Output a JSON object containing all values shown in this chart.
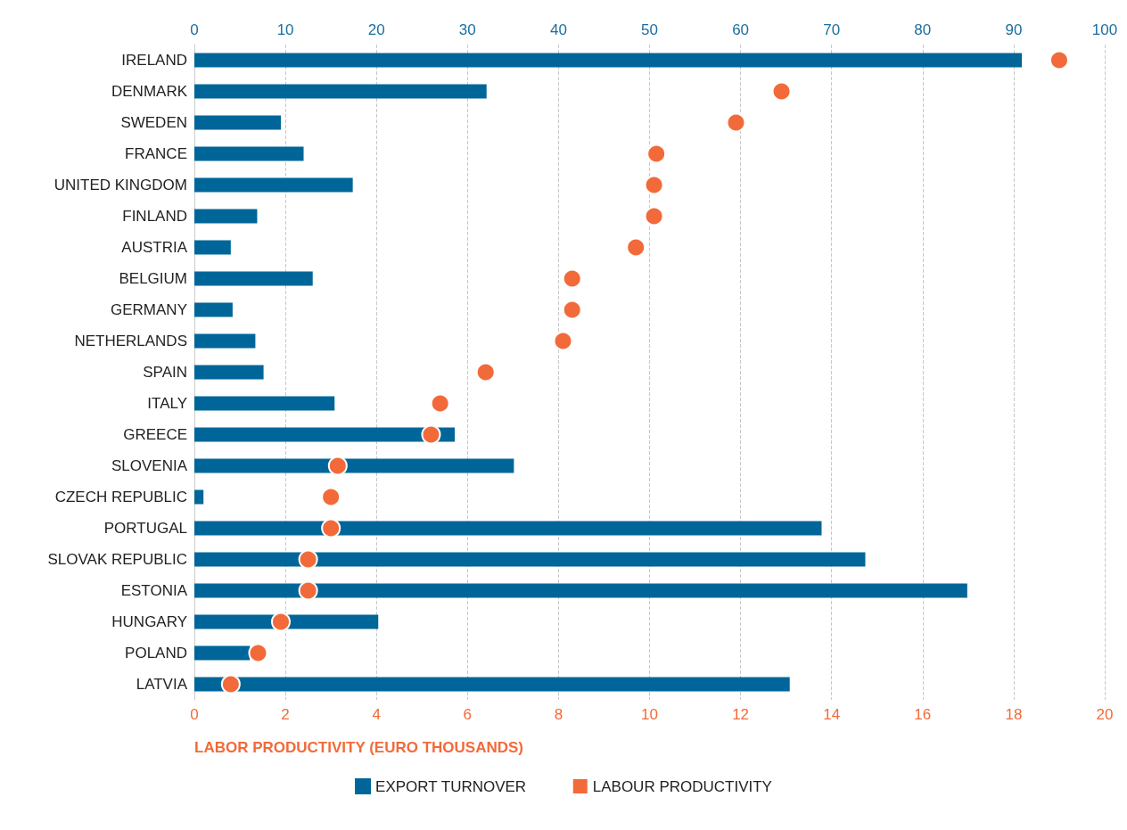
{
  "chart_data": {
    "type": "bar",
    "orientation": "horizontal",
    "xlabel": "LABOR PRODUCTIVITY (EURO THOUSANDS)",
    "categories": [
      "IRELAND",
      "DENMARK",
      "SWEDEN",
      "FRANCE",
      "UNITED KINGDOM",
      "FINLAND",
      "AUSTRIA",
      "BELGIUM",
      "GERMANY",
      "NETHERLANDS",
      "SPAIN",
      "ITALY",
      "GREECE",
      "SLOVENIA",
      "CZECH REPUBLIC",
      "PORTUGAL",
      "SLOVAK REPUBLIC",
      "ESTONIA",
      "HUNGARY",
      "POLAND",
      "LATVIA"
    ],
    "series": [
      {
        "name": "EXPORT TURNOVER",
        "type": "bar",
        "axis": "x2",
        "color": "#006699",
        "values": [
          90.9,
          32.1,
          9.5,
          12.0,
          17.4,
          6.9,
          4.0,
          13.0,
          4.2,
          6.7,
          7.6,
          15.4,
          28.6,
          35.1,
          1.0,
          68.9,
          73.7,
          84.9,
          20.2,
          6.1,
          65.4
        ]
      },
      {
        "name": "LABOUR PRODUCTIVITY",
        "type": "scatter",
        "color": "#f26a3a",
        "values": [
          19.0,
          12.9,
          11.9,
          10.15,
          10.1,
          10.1,
          9.7,
          8.3,
          8.3,
          8.1,
          6.4,
          5.4,
          5.2,
          3.15,
          3.0,
          3.0,
          2.5,
          2.5,
          1.9,
          1.4,
          0.8
        ]
      }
    ],
    "xlim": [
      0,
      20
    ],
    "xticks": [
      0,
      2,
      4,
      6,
      8,
      10,
      12,
      14,
      16,
      18,
      20
    ],
    "x2lim": [
      0,
      100
    ],
    "x2ticks": [
      0,
      10,
      20,
      30,
      40,
      50,
      60,
      70,
      80,
      90,
      100
    ],
    "grid": "x",
    "legend": "bottom",
    "marker": "circle"
  }
}
